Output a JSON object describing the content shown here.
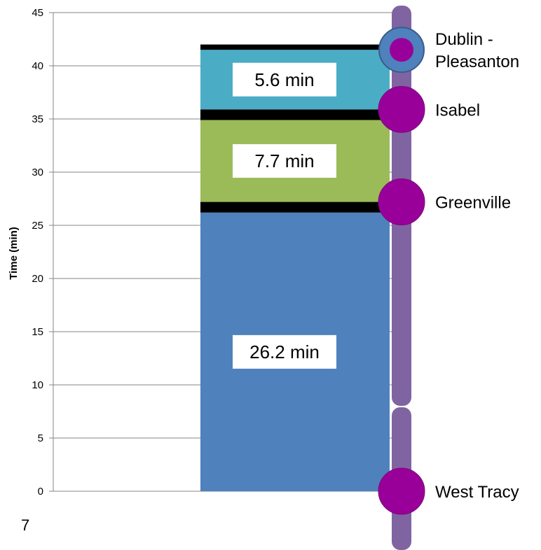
{
  "chart_data": {
    "type": "bar",
    "stacked": true,
    "ylabel": "Time (min)",
    "ylim": [
      0,
      45
    ],
    "yticks": [
      0,
      5,
      10,
      15,
      20,
      25,
      30,
      35,
      40,
      45
    ],
    "grid": true,
    "segments": [
      {
        "value": 26.2,
        "label": "26.2 min",
        "color": "#4f81bd"
      },
      {
        "value": 1.0,
        "label": "",
        "color": "#000000"
      },
      {
        "value": 7.7,
        "label": "7.7 min",
        "color": "#9bbb59"
      },
      {
        "value": 1.0,
        "label": "",
        "color": "#000000"
      },
      {
        "value": 5.6,
        "label": "5.6 min",
        "color": "#4bacc6"
      },
      {
        "value": 0.5,
        "label": "",
        "color": "#000000"
      }
    ],
    "stations": [
      {
        "name": "West Tracy",
        "lines": [
          "West Tracy"
        ],
        "time": 0,
        "style": "stop"
      },
      {
        "name": "Greenville",
        "lines": [
          "Greenville"
        ],
        "time": 27.2,
        "style": "stop"
      },
      {
        "name": "Isabel",
        "lines": [
          "Isabel"
        ],
        "time": 35.9,
        "style": "stop"
      },
      {
        "name": "Dublin - Pleasanton",
        "lines": [
          "Dublin -",
          "Pleasanton"
        ],
        "time": 41.5,
        "style": "terminal"
      }
    ]
  },
  "colors": {
    "route_line": "#8064a2",
    "stop": "#990099",
    "terminal_ring": "#4f81bd",
    "grid": "#868686"
  },
  "footer": {
    "page_number": "7"
  }
}
